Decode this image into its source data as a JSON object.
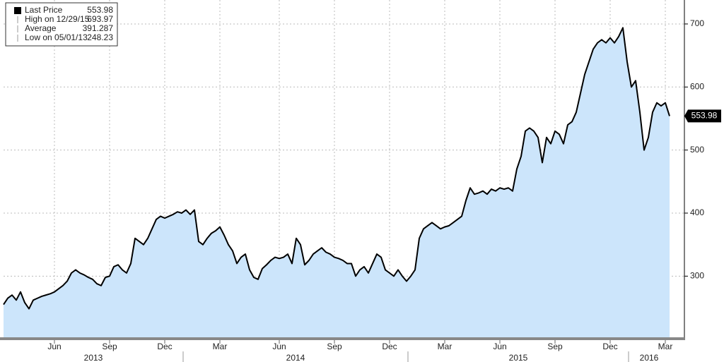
{
  "chart_data": {
    "type": "area",
    "legend": [
      {
        "label": "Last Price",
        "value": 553.98
      },
      {
        "label": "High on 12/29/15",
        "value": 693.97
      },
      {
        "label": "Average",
        "value": 391.287
      },
      {
        "label": "Low on 05/01/13",
        "value": 248.23
      }
    ],
    "categories": [
      null,
      null,
      null,
      null,
      null,
      null,
      null,
      null,
      null,
      null,
      null,
      null,
      "Jun",
      null,
      null,
      null,
      null,
      null,
      null,
      null,
      null,
      null,
      null,
      null,
      null,
      "Sep",
      null,
      null,
      null,
      null,
      null,
      null,
      null,
      null,
      null,
      null,
      null,
      null,
      "Dec",
      null,
      null,
      null,
      null,
      null,
      null,
      null,
      null,
      null,
      null,
      null,
      null,
      "Mar",
      null,
      null,
      null,
      null,
      null,
      null,
      null,
      null,
      null,
      null,
      null,
      null,
      null,
      "Jun",
      null,
      null,
      null,
      null,
      null,
      null,
      null,
      null,
      null,
      null,
      null,
      null,
      "Sep",
      null,
      null,
      null,
      null,
      null,
      null,
      null,
      null,
      null,
      null,
      null,
      null,
      "Dec",
      null,
      null,
      null,
      null,
      null,
      null,
      null,
      null,
      null,
      null,
      null,
      null,
      "Mar",
      null,
      null,
      null,
      null,
      null,
      null,
      null,
      null,
      null,
      null,
      null,
      null,
      "Jun",
      null,
      null,
      null,
      null,
      null,
      null,
      null,
      null,
      null,
      null,
      null,
      null,
      "Sep",
      null,
      null,
      null,
      null,
      null,
      null,
      null,
      null,
      null,
      null,
      null,
      null,
      "Dec",
      null,
      null,
      null,
      null,
      null,
      null,
      null,
      null,
      null,
      null,
      null,
      null,
      "Mar",
      null
    ],
    "years": [
      "2013",
      "2014",
      "2015",
      "2016"
    ],
    "series": [
      {
        "name": "Last Price",
        "color": "#000000",
        "fill": "#cce5fb",
        "values": [
          255,
          265,
          270,
          262,
          275,
          258,
          248.23,
          262,
          265,
          268,
          270,
          272,
          275,
          280,
          285,
          292,
          305,
          310,
          305,
          302,
          298,
          295,
          288,
          285,
          298,
          300,
          315,
          318,
          310,
          305,
          320,
          360,
          355,
          350,
          360,
          375,
          390,
          395,
          392,
          395,
          398,
          402,
          400,
          405,
          398,
          405,
          355,
          350,
          360,
          368,
          372,
          378,
          365,
          350,
          340,
          320,
          330,
          335,
          310,
          298,
          295,
          312,
          318,
          325,
          330,
          328,
          330,
          335,
          320,
          360,
          350,
          318,
          325,
          335,
          340,
          345,
          338,
          335,
          330,
          328,
          325,
          320,
          320,
          300,
          310,
          315,
          305,
          320,
          335,
          330,
          310,
          305,
          300,
          310,
          300,
          292,
          300,
          310,
          360,
          375,
          380,
          385,
          380,
          375,
          378,
          380,
          385,
          390,
          395,
          420,
          440,
          430,
          432,
          435,
          430,
          438,
          435,
          440,
          438,
          440,
          435,
          470,
          490,
          530,
          535,
          530,
          520,
          480,
          520,
          510,
          530,
          525,
          510,
          540,
          545,
          560,
          590,
          620,
          640,
          660,
          670,
          675,
          670,
          678,
          670,
          680,
          693.97,
          640,
          600,
          610,
          560,
          500,
          520,
          560,
          575,
          570,
          575,
          553.98
        ]
      }
    ],
    "ylim": [
      203,
      738
    ],
    "yticks": [
      300,
      400,
      500,
      600,
      700
    ],
    "grid": true
  }
}
